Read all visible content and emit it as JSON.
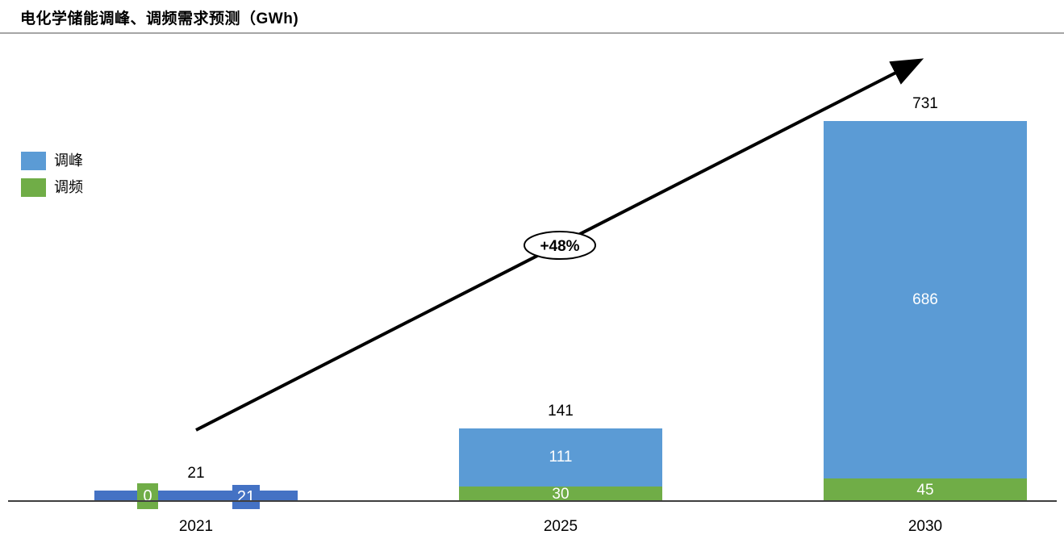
{
  "title": "电化学储能调峰、调频需求预测（GWh)",
  "legend": [
    {
      "label": "调峰",
      "color": "#5B9BD5"
    },
    {
      "label": "调频",
      "color": "#70AD47"
    }
  ],
  "chart_data": {
    "type": "bar",
    "stacked": true,
    "title": "电化学储能调峰、调频需求预测（GWh)",
    "unit": "GWh",
    "categories": [
      "2021",
      "2025",
      "2030"
    ],
    "series": [
      {
        "name": "调频",
        "color": "#70AD47",
        "values": [
          0,
          30,
          45
        ]
      },
      {
        "name": "调峰",
        "color": "#5B9BD5",
        "values": [
          21,
          111,
          686
        ]
      }
    ],
    "totals": [
      21,
      141,
      731
    ],
    "annotation": "+48%",
    "ylim": [
      0,
      731
    ],
    "grid": false,
    "legend_position": "left"
  },
  "colors": {
    "peak_blue": "#5B9BD5",
    "freq_green": "#70AD47",
    "bar_2021_blue": "#4472C4",
    "axis": "#3f3f3f",
    "divider": "#a6a6a6"
  }
}
